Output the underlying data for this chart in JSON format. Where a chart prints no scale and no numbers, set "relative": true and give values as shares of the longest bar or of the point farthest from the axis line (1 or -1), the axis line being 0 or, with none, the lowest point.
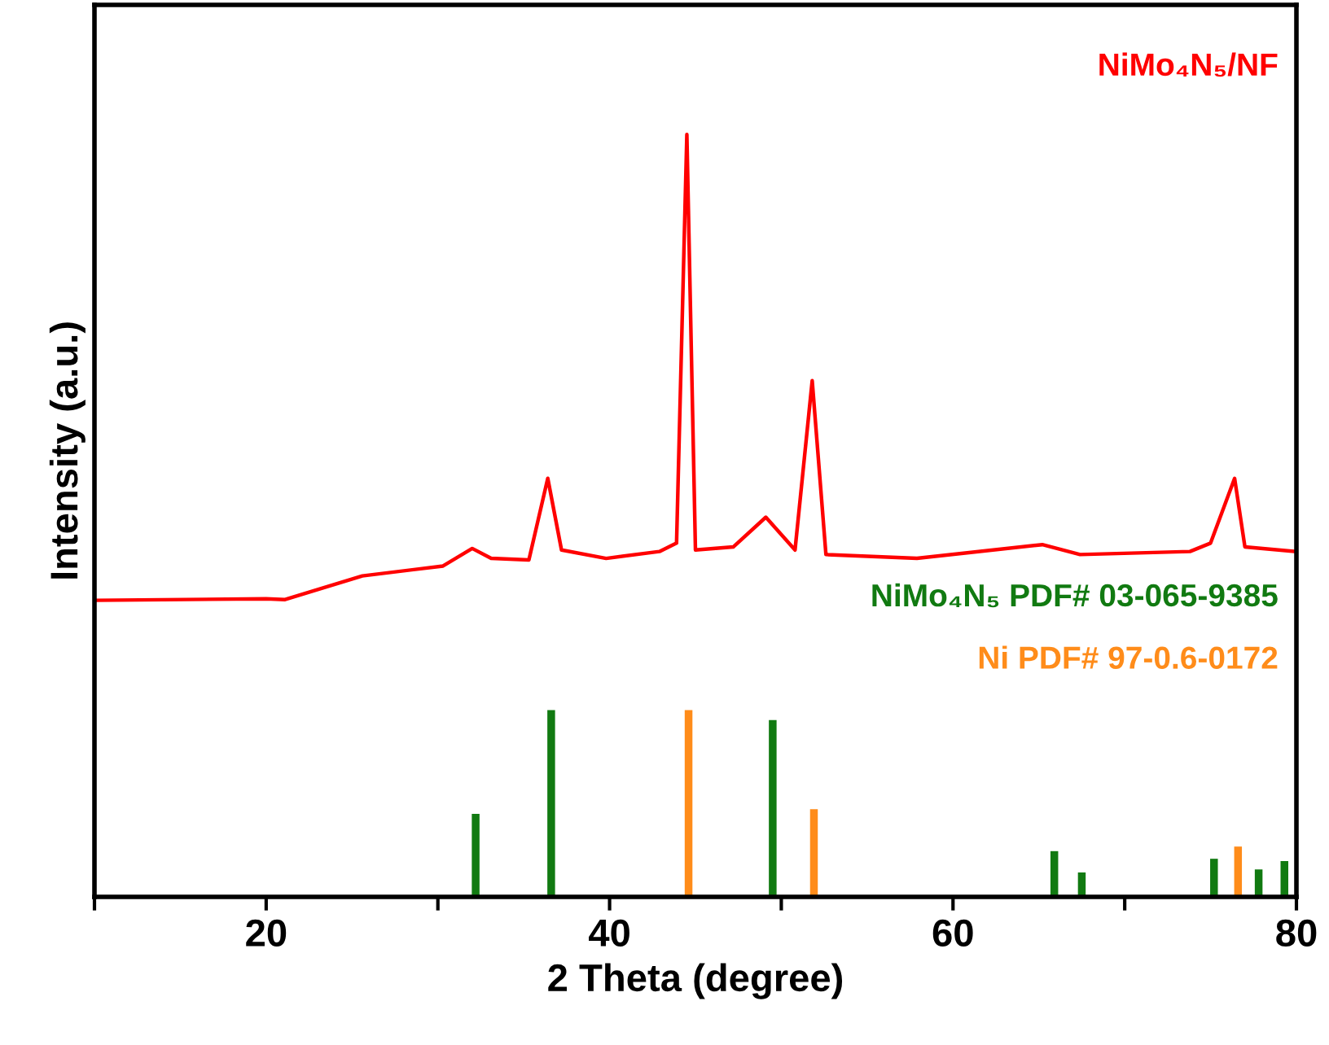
{
  "chart_data": {
    "type": "line",
    "xlabel": "2 Theta (degree)",
    "ylabel": "Intensity (a.u.)",
    "relative": true,
    "xlim": [
      10,
      80
    ],
    "xticks": [
      {
        "value": 10,
        "label": null
      },
      20,
      {
        "value": 30,
        "label": null
      },
      40,
      {
        "value": 50,
        "label": null
      },
      60,
      {
        "value": 70,
        "label": null
      },
      80
    ],
    "grid": false,
    "legend": false,
    "series": [
      {
        "name": "NiMo₄N₅/NF",
        "color": "#ff0000",
        "x": [
          10,
          20,
          21.1,
          25.6,
          30.3,
          32.0,
          33.1,
          35.3,
          36.4,
          37.2,
          39.8,
          42.9,
          43.9,
          44.5,
          45.0,
          47.2,
          49.1,
          50.8,
          51.8,
          52.6,
          57.9,
          65.2,
          67.4,
          73.8,
          75.0,
          76.4,
          77.0,
          80
        ],
        "values": [
          0.389,
          0.391,
          0.39,
          0.421,
          0.434,
          0.457,
          0.444,
          0.442,
          0.549,
          0.455,
          0.444,
          0.453,
          0.464,
          1.0,
          0.455,
          0.459,
          0.498,
          0.455,
          0.677,
          0.449,
          0.444,
          0.462,
          0.449,
          0.453,
          0.464,
          0.549,
          0.459,
          0.453
        ]
      },
      {
        "name": "NiMo₄N₅ PDF# 03-065-9385",
        "color": "#117a11",
        "type": "bar",
        "x": [
          32.2,
          36.6,
          49.5,
          65.9,
          67.5,
          75.2,
          77.8,
          79.3
        ],
        "values": [
          0.109,
          0.245,
          0.232,
          0.06,
          0.032,
          0.05,
          0.036,
          0.047
        ]
      },
      {
        "name": "Ni PDF# 97-0.6-0172",
        "color": "#ff8c1a",
        "type": "bar",
        "x": [
          44.6,
          51.9,
          76.6
        ],
        "values": [
          0.245,
          0.115,
          0.066
        ]
      }
    ]
  }
}
